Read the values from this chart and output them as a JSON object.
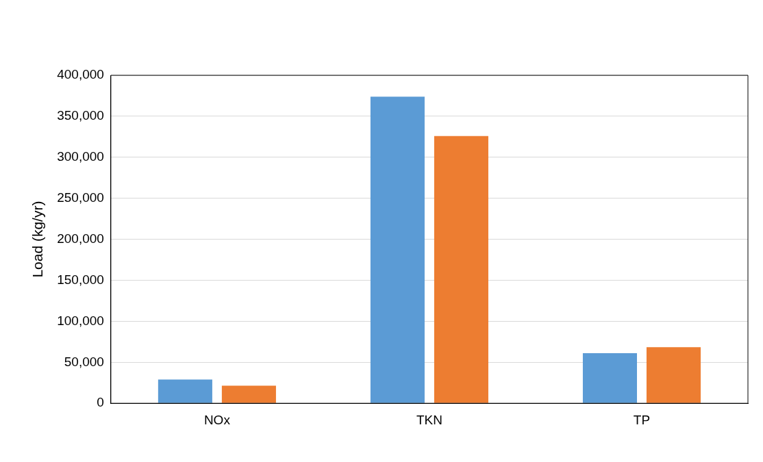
{
  "chart_data": {
    "type": "bar",
    "ylabel": "Load (kg/yr)",
    "categories": [
      "NOx",
      "TKN",
      "TP"
    ],
    "series": [
      {
        "color": "#5b9bd5",
        "values": [
          29000,
          374000,
          61000
        ]
      },
      {
        "color": "#ed7d31",
        "values": [
          21500,
          326000,
          68500
        ]
      }
    ],
    "ylim": [
      0,
      400000
    ],
    "yticks": [
      {
        "value": 0,
        "label": "0"
      },
      {
        "value": 50000,
        "label": "50,000"
      },
      {
        "value": 100000,
        "label": "100,000"
      },
      {
        "value": 150000,
        "label": "150,000"
      },
      {
        "value": 200000,
        "label": "200,000"
      },
      {
        "value": 250000,
        "label": "250,000"
      },
      {
        "value": 300000,
        "label": "300,000"
      },
      {
        "value": 350000,
        "label": "350,000"
      },
      {
        "value": 400000,
        "label": "400,000"
      }
    ],
    "grid": "y"
  }
}
